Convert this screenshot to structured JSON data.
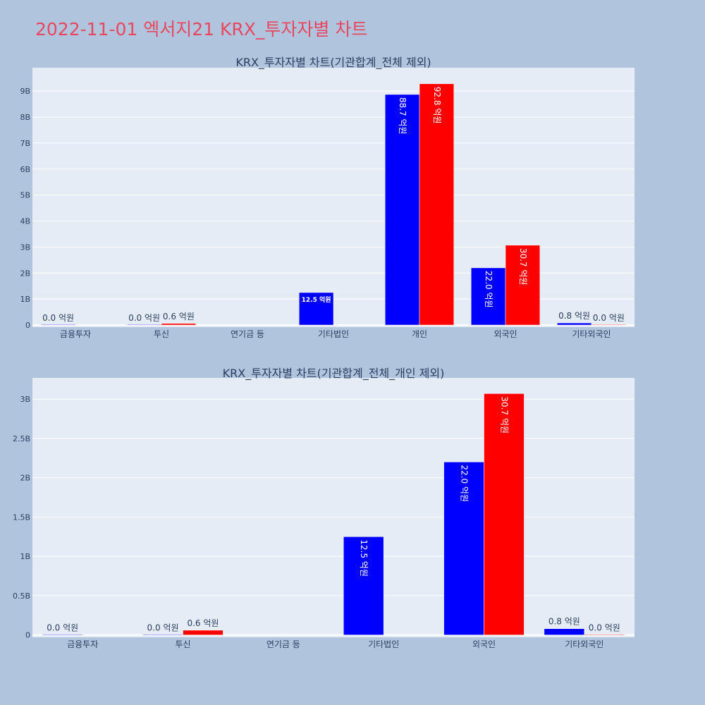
{
  "page_title": "2022-11-01 엑서지21 KRX_투자자별 차트",
  "colors": {
    "background": "#b0c4de",
    "plot_bg": "#e5ecf6",
    "title": "#e8485e",
    "series_a": "#0000ff",
    "series_b": "#ff0000",
    "axis_text": "#2a3f5f"
  },
  "chart_data": [
    {
      "type": "bar",
      "title": "KRX_투자자별 차트(기관합계_전체 제외)",
      "categories": [
        "금융투자",
        "투신",
        "연기금 등",
        "기타법인",
        "개인",
        "외국인",
        "기타외국인"
      ],
      "series": [
        {
          "color": "#0000ff",
          "values": [
            0,
            0,
            null,
            1250000000,
            8870000000,
            2200000000,
            80000000
          ],
          "labels": [
            "0.0 억원",
            "0.0 억원",
            "",
            "12.5 억원",
            "88.7 억원",
            "22.0 억원",
            "0.8 억원"
          ]
        },
        {
          "color": "#ff0000",
          "values": [
            null,
            60000000,
            null,
            null,
            9280000000,
            3070000000,
            0
          ],
          "labels": [
            "",
            "0.6 억원",
            "",
            "",
            "92.8 억원",
            "30.7 억원",
            "0.0 억원"
          ]
        }
      ],
      "yticks": [
        0,
        1000000000,
        2000000000,
        3000000000,
        4000000000,
        5000000000,
        6000000000,
        7000000000,
        8000000000,
        9000000000
      ],
      "yticklabels": [
        "0",
        "1B",
        "2B",
        "3B",
        "4B",
        "5B",
        "6B",
        "7B",
        "8B",
        "9B"
      ],
      "ylim": [
        -80000000,
        9900000000
      ],
      "grid": true
    },
    {
      "type": "bar",
      "title": "KRX_투자자별 차트(기관합계_전체_개인 제외)",
      "categories": [
        "금융투자",
        "투신",
        "연기금 등",
        "기타법인",
        "외국인",
        "기타외국인"
      ],
      "series": [
        {
          "color": "#0000ff",
          "values": [
            0,
            0,
            null,
            1250000000,
            2200000000,
            80000000
          ],
          "labels": [
            "0.0 억원",
            "0.0 억원",
            "",
            "12.5 억원",
            "22.0 억원",
            "0.8 억원"
          ]
        },
        {
          "color": "#ff0000",
          "values": [
            null,
            60000000,
            null,
            null,
            3070000000,
            0
          ],
          "labels": [
            "",
            "0.6 억원",
            "",
            "",
            "30.7 억원",
            "0.0 억원"
          ]
        }
      ],
      "yticks": [
        0,
        500000000,
        1000000000,
        1500000000,
        2000000000,
        2500000000,
        3000000000
      ],
      "yticklabels": [
        "0",
        "0.5B",
        "1B",
        "1.5B",
        "2B",
        "2.5B",
        "3B"
      ],
      "ylim": [
        -30000000,
        3270000000
      ],
      "grid": true
    }
  ]
}
